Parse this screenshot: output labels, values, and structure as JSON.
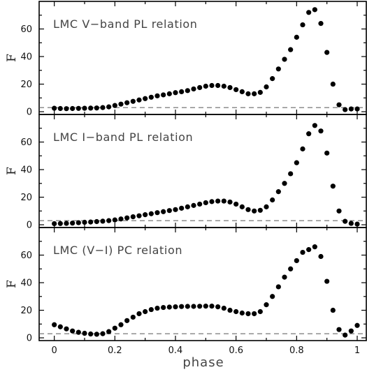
{
  "figure": {
    "xlabel": "phase"
  },
  "chart_data": [
    {
      "type": "scatter",
      "title": "LMC V−band PL relation",
      "xlabel": "phase",
      "ylabel": "F",
      "xlim": [
        -0.05,
        1.03
      ],
      "ylim": [
        -2,
        80
      ],
      "xticks": [
        0,
        0.2,
        0.4,
        0.6,
        0.8,
        1
      ],
      "xtick_labels": [
        "0",
        "0.2",
        "0.4",
        "0.6",
        "0.8",
        "1"
      ],
      "yticks": [
        0,
        20,
        40,
        60
      ],
      "reference_line_y": 3,
      "x": [
        0,
        0.02,
        0.04,
        0.06,
        0.08,
        0.1,
        0.12,
        0.14,
        0.16,
        0.18,
        0.2,
        0.22,
        0.24,
        0.26,
        0.28,
        0.3,
        0.32,
        0.34,
        0.36,
        0.38,
        0.4,
        0.42,
        0.44,
        0.46,
        0.48,
        0.5,
        0.52,
        0.54,
        0.56,
        0.58,
        0.6,
        0.62,
        0.64,
        0.66,
        0.68,
        0.7,
        0.72,
        0.74,
        0.76,
        0.78,
        0.8,
        0.82,
        0.84,
        0.86,
        0.88,
        0.9,
        0.92,
        0.94,
        0.96,
        0.98,
        1
      ],
      "y": [
        2.5,
        2.3,
        2.2,
        2.3,
        2.4,
        2.5,
        2.6,
        2.7,
        3.0,
        3.5,
        4.5,
        5.5,
        6.5,
        7.5,
        8.5,
        9.5,
        10.5,
        11.5,
        12.2,
        13.0,
        13.8,
        14.5,
        15.3,
        16.5,
        17.5,
        18.5,
        19.0,
        19.0,
        18.5,
        17.5,
        16.0,
        14.5,
        13.0,
        13.0,
        14.0,
        18.0,
        24.0,
        31.0,
        38.0,
        45.0,
        54.0,
        63.0,
        72.0,
        74.0,
        64.0,
        43.0,
        20.0,
        5.0,
        1.5,
        2.0,
        2.0
      ]
    },
    {
      "type": "scatter",
      "title": "LMC I−band PL relation",
      "xlabel": "phase",
      "ylabel": "F",
      "xlim": [
        -0.05,
        1.03
      ],
      "ylim": [
        -2,
        80
      ],
      "xticks": [
        0,
        0.2,
        0.4,
        0.6,
        0.8,
        1
      ],
      "xtick_labels": [
        "0",
        "0.2",
        "0.4",
        "0.6",
        "0.8",
        "1"
      ],
      "yticks": [
        0,
        20,
        40,
        60
      ],
      "reference_line_y": 3,
      "x": [
        0,
        0.02,
        0.04,
        0.06,
        0.08,
        0.1,
        0.12,
        0.14,
        0.16,
        0.18,
        0.2,
        0.22,
        0.24,
        0.26,
        0.28,
        0.3,
        0.32,
        0.34,
        0.36,
        0.38,
        0.4,
        0.42,
        0.44,
        0.46,
        0.48,
        0.5,
        0.52,
        0.54,
        0.56,
        0.58,
        0.6,
        0.62,
        0.64,
        0.66,
        0.68,
        0.7,
        0.72,
        0.74,
        0.76,
        0.78,
        0.8,
        0.82,
        0.84,
        0.86,
        0.88,
        0.9,
        0.92,
        0.94,
        0.96,
        0.98,
        1
      ],
      "y": [
        0.8,
        0.9,
        1.0,
        1.2,
        1.5,
        1.8,
        2.0,
        2.3,
        2.6,
        3.0,
        3.5,
        4.2,
        5.0,
        5.8,
        6.5,
        7.3,
        8.0,
        8.8,
        9.5,
        10.3,
        11.0,
        12.0,
        13.0,
        14.0,
        15.0,
        16.0,
        16.8,
        17.2,
        17.2,
        16.5,
        15.0,
        13.0,
        11.0,
        10.0,
        10.5,
        13.0,
        18.0,
        24.0,
        30.0,
        37.0,
        45.0,
        55.0,
        66.0,
        72.0,
        68.0,
        52.0,
        28.0,
        10.0,
        2.5,
        1.0,
        0.5
      ]
    },
    {
      "type": "scatter",
      "title": "LMC (V−I) PC relation",
      "xlabel": "phase",
      "ylabel": "F",
      "xlim": [
        -0.05,
        1.03
      ],
      "ylim": [
        -2,
        80
      ],
      "xticks": [
        0,
        0.2,
        0.4,
        0.6,
        0.8,
        1
      ],
      "xtick_labels": [
        "0",
        "0.2",
        "0.4",
        "0.6",
        "0.8",
        "1"
      ],
      "yticks": [
        0,
        20,
        40,
        60
      ],
      "reference_line_y": 3,
      "x": [
        0,
        0.02,
        0.04,
        0.06,
        0.08,
        0.1,
        0.12,
        0.14,
        0.16,
        0.18,
        0.2,
        0.22,
        0.24,
        0.26,
        0.28,
        0.3,
        0.32,
        0.34,
        0.36,
        0.38,
        0.4,
        0.42,
        0.44,
        0.46,
        0.48,
        0.5,
        0.52,
        0.54,
        0.56,
        0.58,
        0.6,
        0.62,
        0.64,
        0.66,
        0.68,
        0.7,
        0.72,
        0.74,
        0.76,
        0.78,
        0.8,
        0.82,
        0.84,
        0.86,
        0.88,
        0.9,
        0.92,
        0.94,
        0.96,
        0.98,
        1
      ],
      "y": [
        9.5,
        8.0,
        6.5,
        5.0,
        4.0,
        3.3,
        2.8,
        2.6,
        3.0,
        4.5,
        7.0,
        9.5,
        12.5,
        15.0,
        17.5,
        19.0,
        20.5,
        21.5,
        22.0,
        22.3,
        22.5,
        22.7,
        22.8,
        22.8,
        22.9,
        23.0,
        23.0,
        22.5,
        21.5,
        20.0,
        19.0,
        18.0,
        17.5,
        17.5,
        19.0,
        24.0,
        30.0,
        37.0,
        44.0,
        50.0,
        56.0,
        62.0,
        64.0,
        66.0,
        59.0,
        41.0,
        20.0,
        6.0,
        2.0,
        5.0,
        9.0
      ]
    }
  ]
}
